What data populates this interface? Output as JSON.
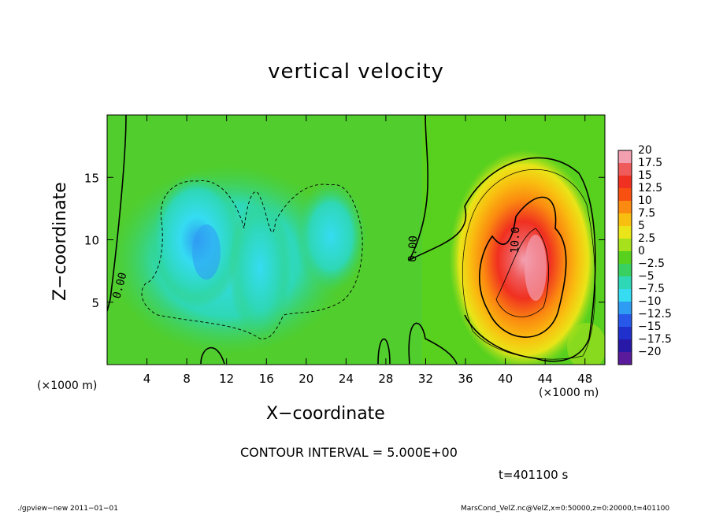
{
  "chart_data": {
    "type": "heatmap",
    "title": "vertical velocity",
    "xlabel": "X−coordinate",
    "ylabel": "Z−coordinate",
    "x_unit": "(×1000 m)",
    "y_unit": "(×1000 m)",
    "xlim": [
      0,
      50
    ],
    "ylim": [
      0,
      20
    ],
    "x_ticks": [
      4,
      8,
      12,
      16,
      20,
      24,
      28,
      32,
      36,
      40,
      44,
      48
    ],
    "y_ticks": [
      5,
      10,
      15
    ],
    "colorbar": {
      "labels": [
        "20",
        "17.5",
        "15",
        "12.5",
        "10",
        "7.5",
        "5",
        "2.5",
        "0",
        "−2.5",
        "−5",
        "−7.5",
        "−10",
        "−12.5",
        "−15",
        "−17.5",
        "−20"
      ],
      "colors": [
        "#f2a0b0",
        "#ef5a5a",
        "#f03020",
        "#f85010",
        "#fb8a10",
        "#f9bf10",
        "#e9e518",
        "#a6e11c",
        "#58d01e",
        "#38d060",
        "#2ed8b6",
        "#35dcf2",
        "#2f9cf3",
        "#2858ea",
        "#2030cc",
        "#2818a8",
        "#5a1a9c"
      ]
    },
    "contour_labels": [
      "0.00",
      "0.00",
      "10.0"
    ],
    "grid": false,
    "legend": "right"
  },
  "annotations": {
    "contour_interval": "CONTOUR INTERVAL = 5.000E+00",
    "time": "t=401100 s",
    "footer_left": "./gpview−new   2011−01−01",
    "footer_right": "MarsCond_VelZ.nc@VelZ,x=0:50000,z=0:20000,t=401100"
  }
}
